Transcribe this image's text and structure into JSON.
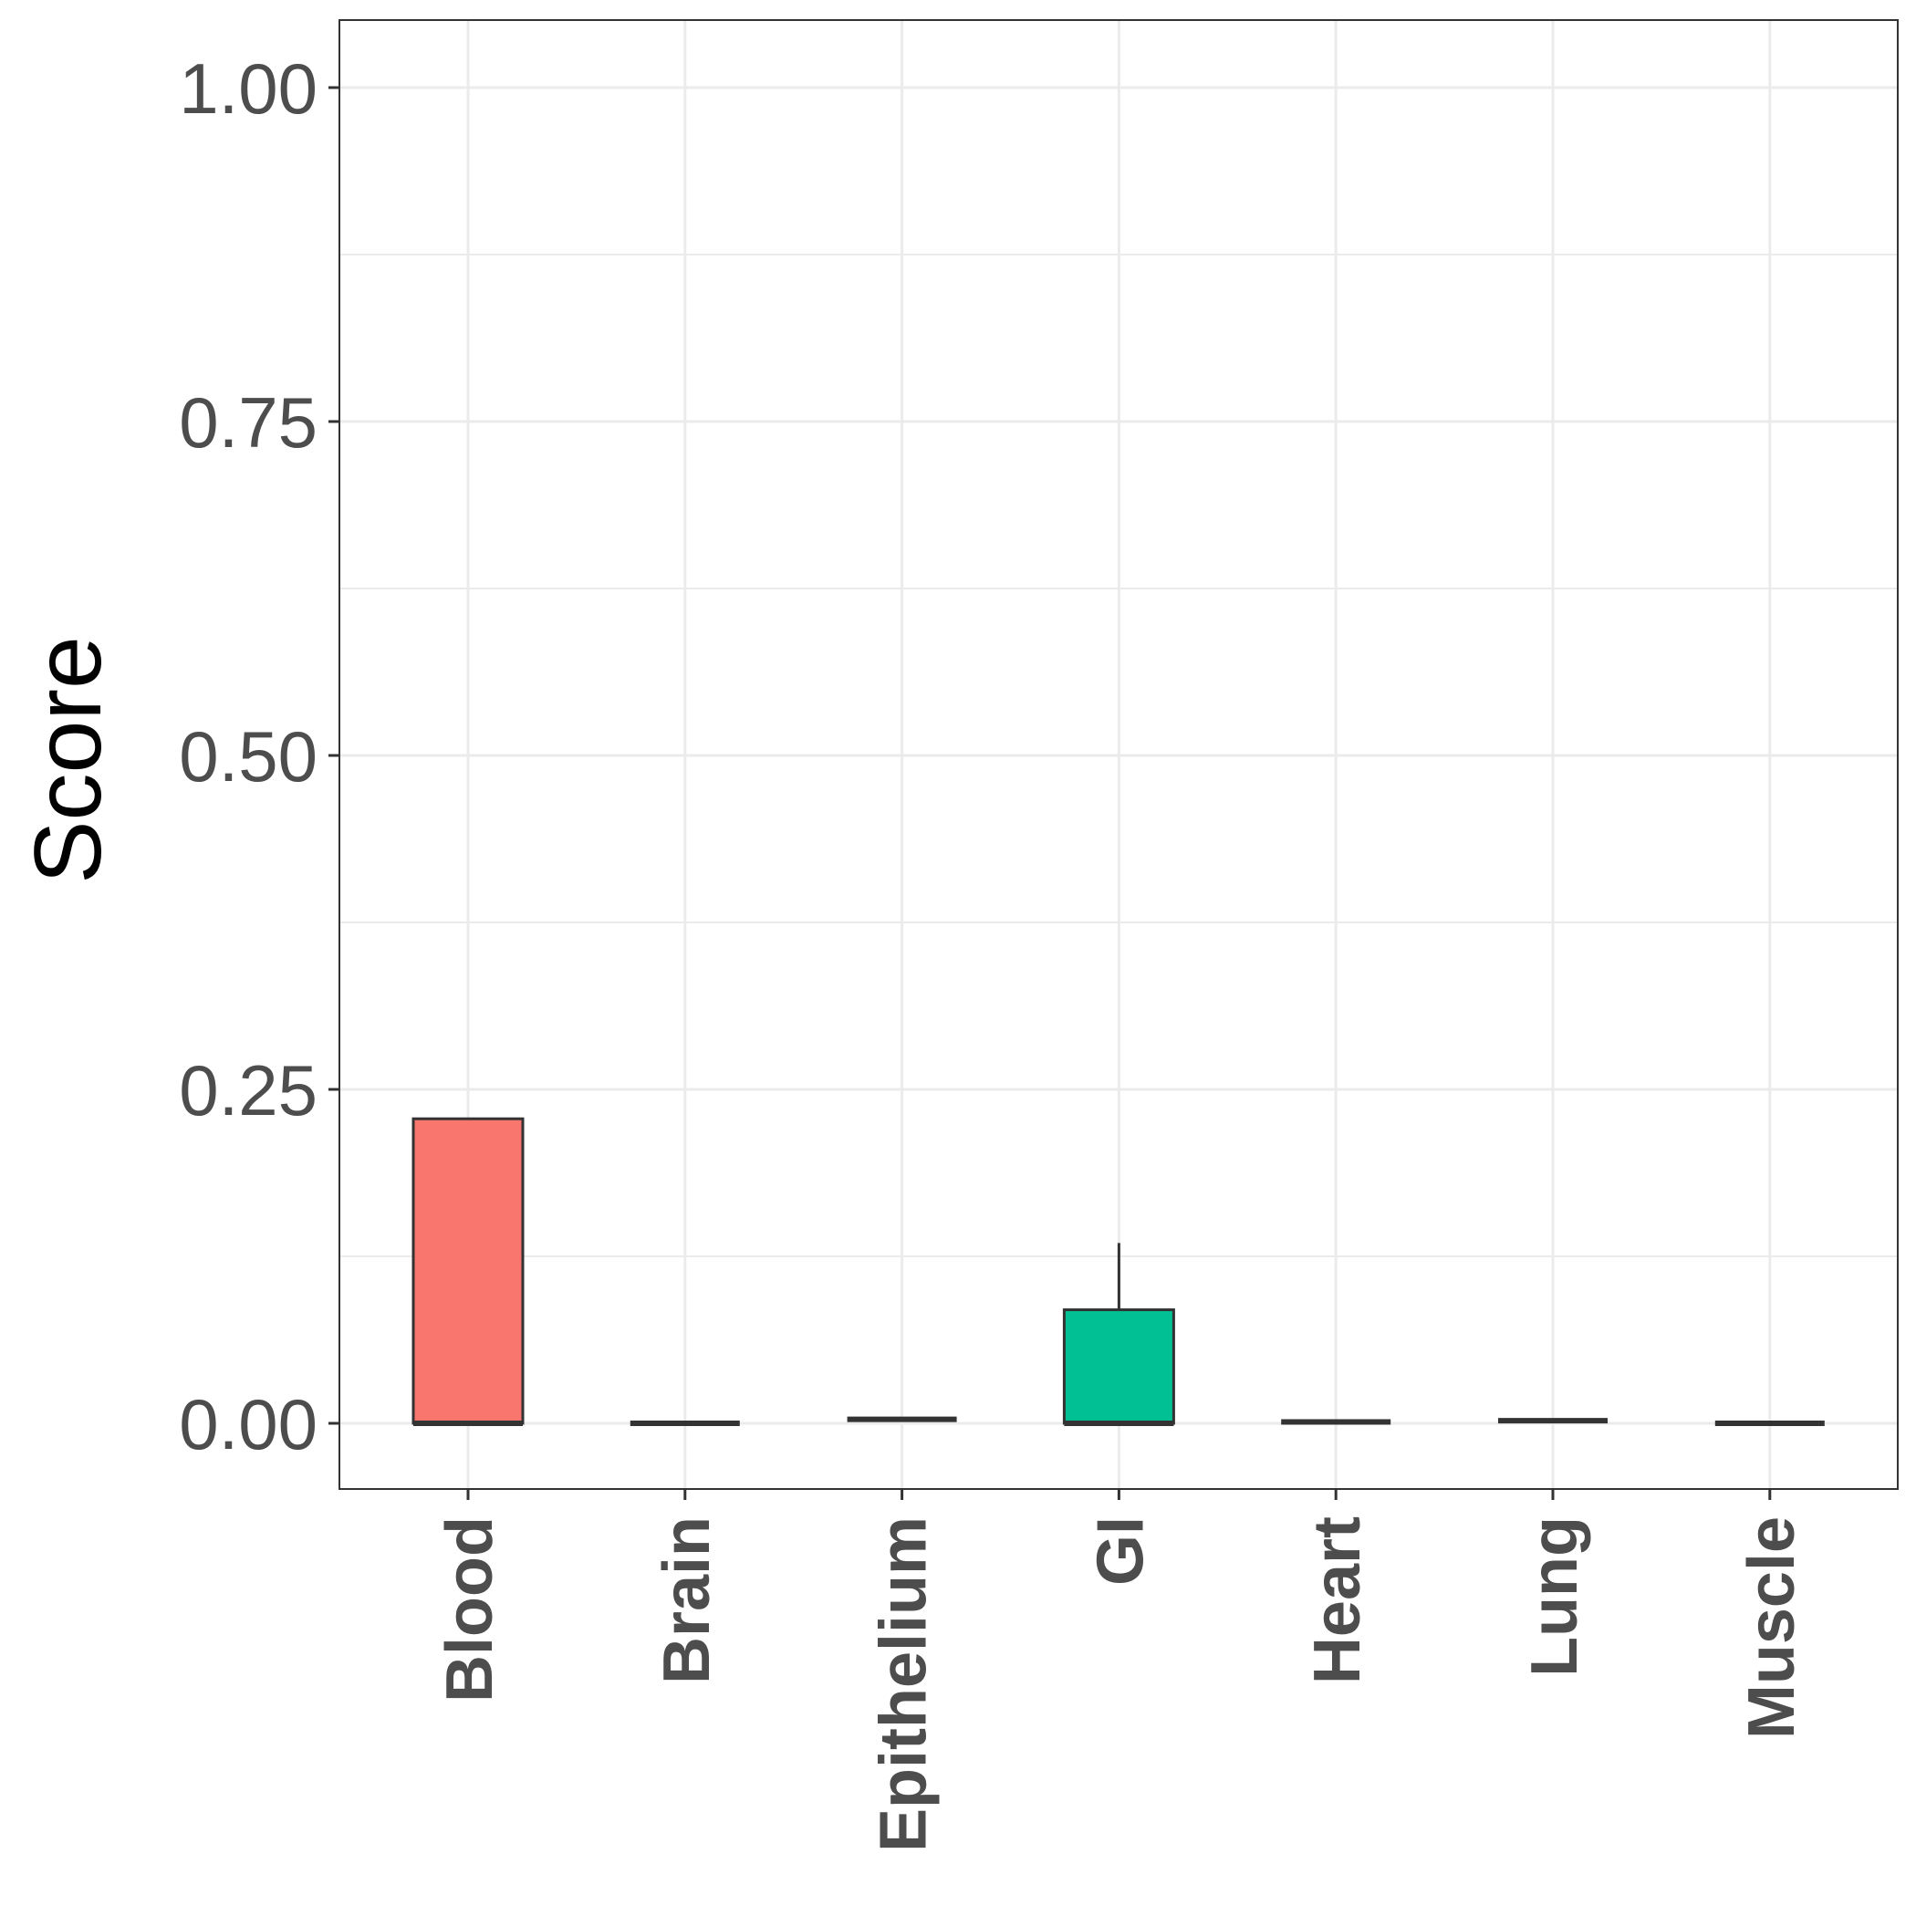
{
  "chart_data": {
    "type": "boxplot",
    "title": "",
    "xlabel": "",
    "ylabel": "Score",
    "ylim": [
      -0.04,
      1.05
    ],
    "yticks": [
      "0.00",
      "0.25",
      "0.50",
      "0.75",
      "1.00"
    ],
    "ytick_values": [
      0,
      0.25,
      0.5,
      0.75,
      1.0
    ],
    "categories": [
      "Blood",
      "Brain",
      "Epithelium",
      "GI",
      "Heart",
      "Lung",
      "Muscle"
    ],
    "boxes": [
      {
        "category": "Blood",
        "min": 0.0,
        "q1": 0.0,
        "median": 0.0,
        "q3": 0.228,
        "max": 0.228,
        "color": "#F8766D"
      },
      {
        "category": "Brain",
        "min": 0.0,
        "q1": 0.0,
        "median": 0.0,
        "q3": 0.0,
        "max": 0.0,
        "color": "#C49A00"
      },
      {
        "category": "Epithelium",
        "min": 0.003,
        "q1": 0.003,
        "median": 0.003,
        "q3": 0.003,
        "max": 0.003,
        "color": "#53B400"
      },
      {
        "category": "GI",
        "min": 0.0,
        "q1": 0.0,
        "median": 0.0,
        "q3": 0.085,
        "max": 0.135,
        "color": "#00C094"
      },
      {
        "category": "Heart",
        "min": 0.001,
        "q1": 0.001,
        "median": 0.001,
        "q3": 0.001,
        "max": 0.001,
        "color": "#00B6EB"
      },
      {
        "category": "Lung",
        "min": 0.002,
        "q1": 0.002,
        "median": 0.002,
        "q3": 0.002,
        "max": 0.002,
        "color": "#A58AFF"
      },
      {
        "category": "Muscle",
        "min": 0.0,
        "q1": 0.0,
        "median": 0.0,
        "q3": 0.0,
        "max": 0.0,
        "color": "#FB61D7"
      }
    ],
    "grid": true,
    "legend": "none"
  }
}
